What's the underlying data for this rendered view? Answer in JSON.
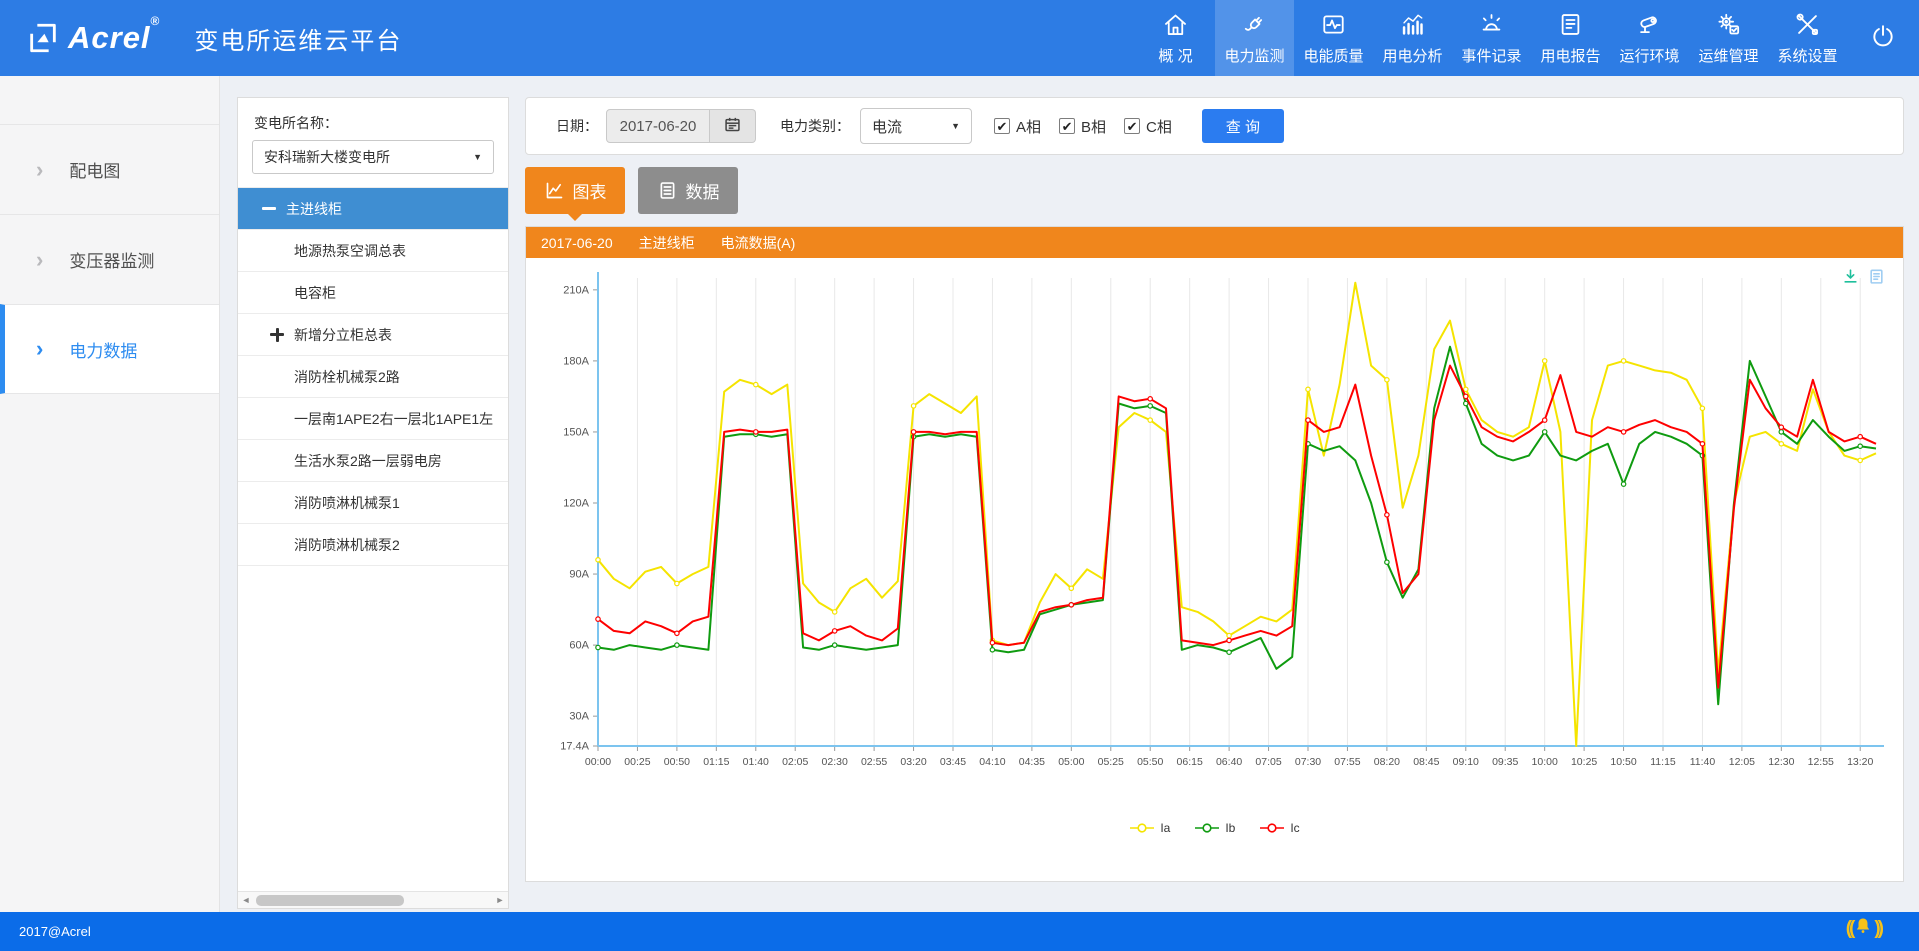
{
  "header": {
    "logo": "Acrel",
    "logo_reg": "®",
    "title": "变电所运维云平台",
    "nav": [
      {
        "label": "概 况",
        "icon": "home-icon"
      },
      {
        "label": "电力监测",
        "icon": "plug-icon",
        "active": true
      },
      {
        "label": "电能质量",
        "icon": "power-quality-icon"
      },
      {
        "label": "用电分析",
        "icon": "analysis-icon"
      },
      {
        "label": "事件记录",
        "icon": "alarm-icon"
      },
      {
        "label": "用电报告",
        "icon": "report-icon"
      },
      {
        "label": "运行环境",
        "icon": "camera-icon"
      },
      {
        "label": "运维管理",
        "icon": "gears-icon"
      },
      {
        "label": "系统设置",
        "icon": "tools-icon"
      }
    ],
    "logout_icon": "power-icon"
  },
  "sidebar": {
    "items": [
      {
        "label": "配电图"
      },
      {
        "label": "变压器监测"
      },
      {
        "label": "电力数据",
        "active": true
      }
    ]
  },
  "tree_panel": {
    "station_label": "变电所名称：",
    "station_value": "安科瑞新大楼变电所",
    "items": [
      {
        "label": "主进线柜",
        "toggle": "minus",
        "selected": true
      },
      {
        "label": "地源热泵空调总表"
      },
      {
        "label": "电容柜"
      },
      {
        "label": "新增分立柜总表",
        "toggle": "plus"
      },
      {
        "label": "消防栓机械泵2路"
      },
      {
        "label": "一层南1APE2右一层北1APE1左"
      },
      {
        "label": "生活水泵2路一层弱电房"
      },
      {
        "label": "消防喷淋机械泵1"
      },
      {
        "label": "消防喷淋机械泵2"
      }
    ]
  },
  "toolbar": {
    "date_label": "日期：",
    "date_value": "2017-06-20",
    "type_label": "电力类别：",
    "type_value": "电流",
    "phases": [
      {
        "label": "A相",
        "checked": true
      },
      {
        "label": "B相",
        "checked": true
      },
      {
        "label": "C相",
        "checked": true
      }
    ],
    "query_label": "查 询"
  },
  "tabs": [
    {
      "label": "图表",
      "icon": "chart-tab-icon",
      "active": true
    },
    {
      "label": "数据",
      "icon": "data-tab-icon"
    }
  ],
  "chart_header": {
    "date": "2017-06-20",
    "device": "主进线柜",
    "metric": "电流数据(A)"
  },
  "chart_data": {
    "type": "line",
    "title": "2017-06-20 主进线柜 电流数据(A)",
    "x_tick_labels": [
      "00:00",
      "00:25",
      "00:50",
      "01:15",
      "01:40",
      "02:05",
      "02:30",
      "02:55",
      "03:20",
      "03:45",
      "04:10",
      "04:35",
      "05:00",
      "05:25",
      "05:50",
      "06:15",
      "06:40",
      "07:05",
      "07:30",
      "07:55",
      "08:20",
      "08:45",
      "09:10",
      "09:35",
      "10:00",
      "10:25",
      "10:50",
      "11:15",
      "11:40",
      "12:05",
      "12:30",
      "12:55",
      "13:20"
    ],
    "x_tick_step_minutes": 25,
    "x_total_minutes": 810,
    "sample_step_minutes": 10,
    "y_ticks": [
      17.4,
      30,
      60,
      90,
      120,
      150,
      180,
      210
    ],
    "y_tick_labels": [
      "17.4A",
      "30A",
      "60A",
      "90A",
      "120A",
      "150A",
      "180A",
      "210A"
    ],
    "ylim": [
      17.4,
      215
    ],
    "grid_color": "#e8e8e8",
    "axis_color": "#7cc4ef",
    "legend_position": "bottom",
    "toolbox_icons": [
      "download-icon",
      "dataview-icon"
    ],
    "series": [
      {
        "name": "Ia",
        "color": "#f5e400",
        "values": [
          96,
          88,
          84,
          91,
          93,
          86,
          90,
          93,
          167,
          172,
          170,
          166,
          170,
          86,
          78,
          74,
          84,
          88,
          80,
          87,
          161,
          166,
          162,
          158,
          165,
          62,
          60,
          61,
          78,
          90,
          84,
          92,
          88,
          152,
          158,
          155,
          150,
          76,
          74,
          70,
          64,
          68,
          72,
          70,
          75,
          168,
          140,
          170,
          213,
          178,
          172,
          118,
          140,
          185,
          197,
          168,
          155,
          150,
          148,
          152,
          180,
          150,
          17.4,
          155,
          178,
          180,
          178,
          176,
          175,
          172,
          160,
          48,
          120,
          148,
          150,
          145,
          142,
          168,
          150,
          140,
          138,
          141
        ]
      },
      {
        "name": "Ib",
        "color": "#0f9b10",
        "values": [
          59,
          58,
          60,
          59,
          58,
          60,
          59,
          58,
          148,
          149,
          149,
          148,
          149,
          59,
          58,
          60,
          59,
          58,
          59,
          60,
          148,
          149,
          148,
          149,
          148,
          58,
          57,
          58,
          73,
          75,
          77,
          78,
          79,
          162,
          160,
          161,
          158,
          58,
          60,
          59,
          57,
          60,
          63,
          50,
          55,
          145,
          142,
          144,
          138,
          120,
          95,
          80,
          92,
          160,
          186,
          162,
          145,
          140,
          138,
          140,
          150,
          140,
          138,
          142,
          145,
          128,
          145,
          150,
          148,
          145,
          140,
          35,
          120,
          180,
          165,
          150,
          145,
          155,
          148,
          142,
          144,
          143
        ]
      },
      {
        "name": "Ic",
        "color": "#fe0000",
        "values": [
          71,
          66,
          65,
          70,
          68,
          65,
          70,
          72,
          150,
          151,
          150,
          150,
          151,
          65,
          62,
          66,
          68,
          64,
          62,
          67,
          150,
          150,
          149,
          150,
          150,
          61,
          60,
          61,
          74,
          76,
          77,
          79,
          80,
          165,
          163,
          164,
          160,
          62,
          61,
          60,
          62,
          64,
          66,
          64,
          68,
          155,
          150,
          152,
          170,
          140,
          115,
          82,
          90,
          155,
          178,
          165,
          152,
          148,
          146,
          150,
          155,
          174,
          150,
          148,
          152,
          150,
          153,
          155,
          152,
          150,
          145,
          42,
          118,
          172,
          160,
          152,
          148,
          172,
          150,
          146,
          148,
          145
        ]
      }
    ]
  },
  "footer": {
    "copyright": "2017@Acrel",
    "bell_icon": "bell-icon"
  }
}
